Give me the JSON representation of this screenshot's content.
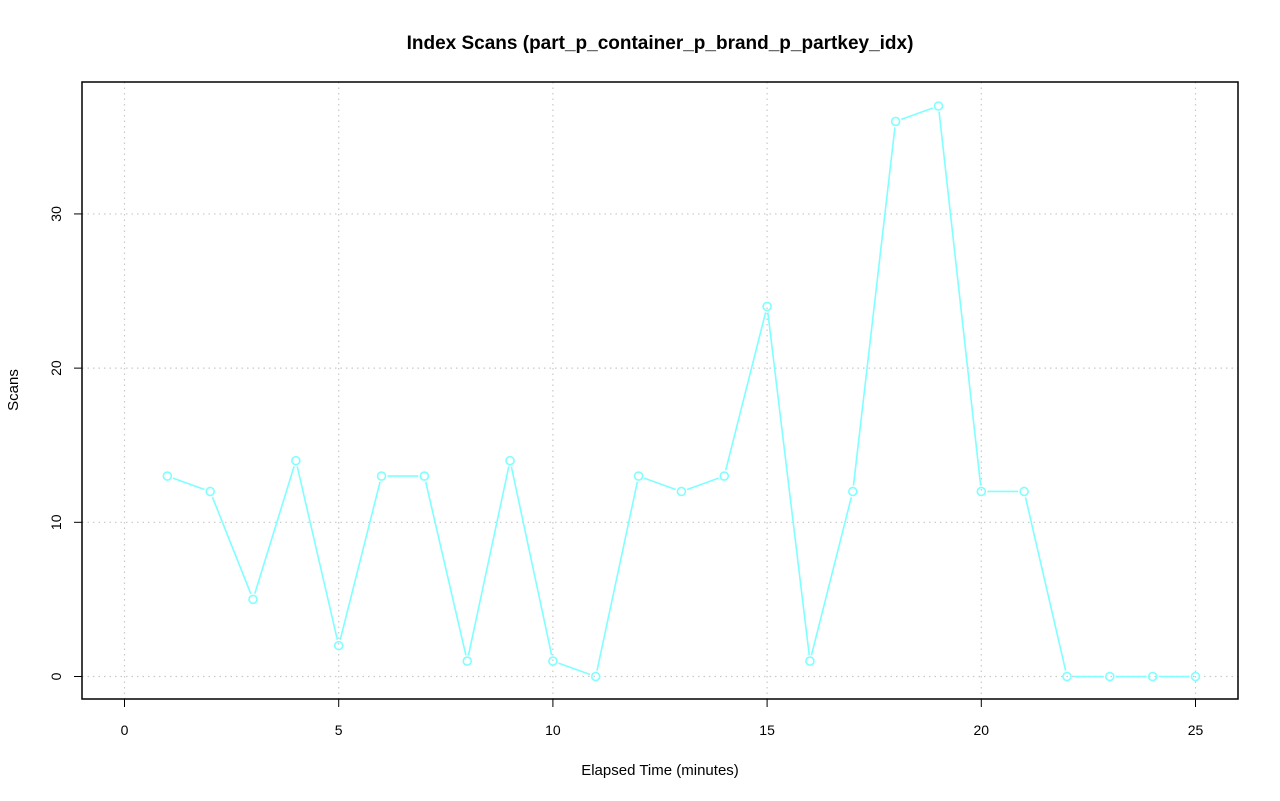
{
  "chart_data": {
    "type": "line",
    "title": "Index Scans (part_p_container_p_brand_p_partkey_idx)",
    "xlabel": "Elapsed Time (minutes)",
    "ylabel": "Scans",
    "xlim": [
      0,
      25
    ],
    "ylim": [
      0,
      37
    ],
    "xticks": [
      0,
      5,
      10,
      15,
      20,
      25
    ],
    "yticks": [
      0,
      10,
      20,
      30
    ],
    "grid": true,
    "series": [
      {
        "color": "#7fffff",
        "marker": "open-circle",
        "x": [
          1,
          2,
          3,
          4,
          5,
          6,
          7,
          8,
          9,
          10,
          11,
          12,
          13,
          14,
          15,
          16,
          17,
          18,
          19,
          20,
          21,
          22,
          23,
          24,
          25
        ],
        "y": [
          13,
          12,
          5,
          14,
          2,
          13,
          13,
          1,
          14,
          1,
          0,
          13,
          12,
          13,
          24,
          1,
          12,
          36,
          37,
          12,
          12,
          0,
          0,
          0,
          0
        ]
      }
    ]
  }
}
